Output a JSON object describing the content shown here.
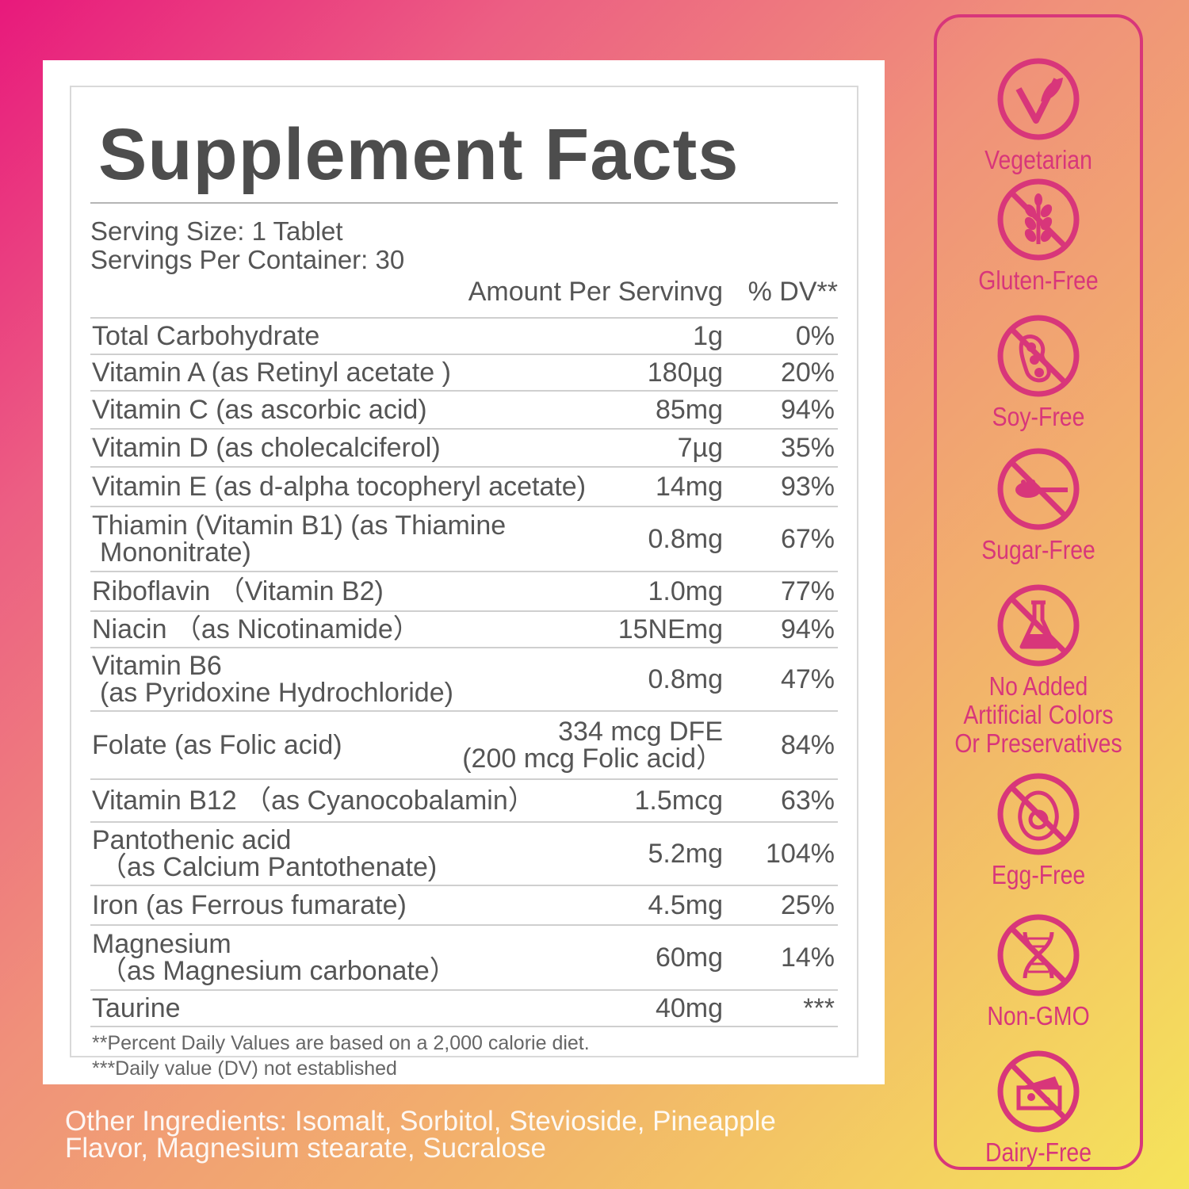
{
  "facts": {
    "title": "Supplement Facts",
    "serving_size": "Serving Size: 1 Tablet",
    "servings_per_container": "Servings Per Container: 30",
    "header_amount": "Amount Per Servinvg",
    "header_dv": "% DV**",
    "rows": [
      {
        "name": [
          "Total Carbohydrate"
        ],
        "amount": [
          "1g"
        ],
        "dv": "0%"
      },
      {
        "name": [
          "Vitamin A (as Retinyl acetate )"
        ],
        "amount": [
          "180µg"
        ],
        "dv": "20%"
      },
      {
        "name": [
          "Vitamin C (as ascorbic acid)"
        ],
        "amount": [
          "85mg"
        ],
        "dv": "94%"
      },
      {
        "name": [
          "Vitamin D (as cholecalciferol)"
        ],
        "amount": [
          "7µg"
        ],
        "dv": "35%"
      },
      {
        "name": [
          "Vitamin E (as d-alpha tocopheryl acetate)"
        ],
        "amount": [
          "14mg"
        ],
        "dv": "93%"
      },
      {
        "name": [
          "Thiamin (Vitamin B1) (as Thiamine",
          "Mononitrate)"
        ],
        "amount": [
          "0.8mg"
        ],
        "dv": "67%"
      },
      {
        "name": [
          "Riboflavin （Vitamin B2)"
        ],
        "amount": [
          "1.0mg"
        ],
        "dv": "77%"
      },
      {
        "name": [
          "Niacin （as Nicotinamide）"
        ],
        "amount": [
          "15NEmg"
        ],
        "dv": "94%"
      },
      {
        "name": [
          "Vitamin B6",
          "(as Pyridoxine Hydrochloride)"
        ],
        "amount": [
          "0.8mg"
        ],
        "dv": "47%"
      },
      {
        "name": [
          "Folate (as Folic acid)"
        ],
        "amount": [
          "334 mcg DFE",
          "(200 mcg Folic acid）"
        ],
        "dv": "84%"
      },
      {
        "name": [
          "Vitamin B12 （as Cyanocobalamin）"
        ],
        "amount": [
          "1.5mcg"
        ],
        "dv": "63%"
      },
      {
        "name": [
          "Pantothenic acid",
          "（as  Calcium Pantothenate)"
        ],
        "amount": [
          "5.2mg"
        ],
        "dv": "104%"
      },
      {
        "name": [
          "Iron (as Ferrous fumarate)"
        ],
        "amount": [
          "4.5mg"
        ],
        "dv": "25%"
      },
      {
        "name": [
          "Magnesium",
          "（as Magnesium carbonate）"
        ],
        "amount": [
          "60mg"
        ],
        "dv": "14%"
      },
      {
        "name": [
          "Taurine"
        ],
        "amount": [
          "40mg"
        ],
        "dv": "***"
      }
    ],
    "footnote_1": "**Percent Daily Values are based on a 2,000 calorie diet.",
    "footnote_2": "***Daily value (DV) not established"
  },
  "other_ingredients": {
    "line_1": "Other Ingredients: Isomalt, Sorbitol, Stevioside, Pineapple",
    "line_2": "Flavor, Magnesium stearate, Sucralose"
  },
  "badges": [
    {
      "label": [
        "Vegetarian"
      ],
      "icon": "leaf-check-icon"
    },
    {
      "label": [
        "Gluten-Free"
      ],
      "icon": "no-wheat-icon"
    },
    {
      "label": [
        "Soy-Free"
      ],
      "icon": "no-soy-icon"
    },
    {
      "label": [
        "Sugar-Free"
      ],
      "icon": "no-sugar-spoon-icon"
    },
    {
      "label": [
        "No Added",
        "Artificial Colors",
        "Or Preservatives"
      ],
      "icon": "no-flask-icon"
    },
    {
      "label": [
        "Egg-Free"
      ],
      "icon": "no-egg-icon"
    },
    {
      "label": [
        "Non-GMO"
      ],
      "icon": "no-dna-icon"
    },
    {
      "label": [
        "Dairy-Free"
      ],
      "icon": "no-cheese-icon"
    }
  ],
  "colors": {
    "accent": "#d8367a",
    "text": "#555555",
    "title": "#4d4d4d"
  }
}
